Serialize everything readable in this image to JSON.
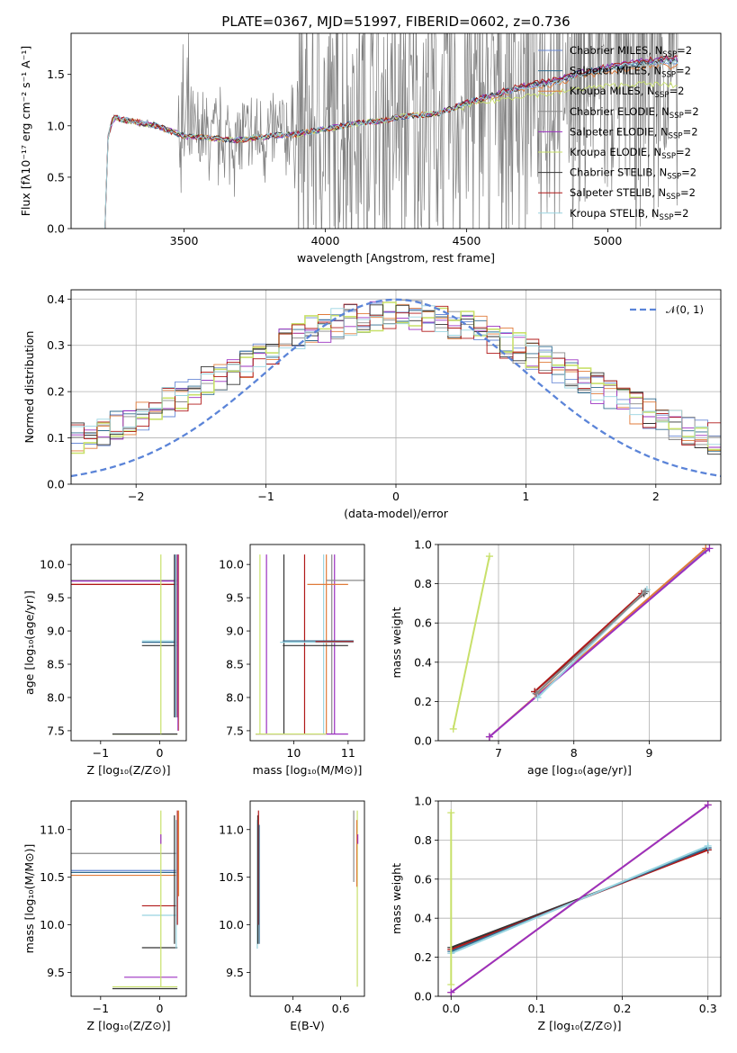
{
  "figure": {
    "title": "PLATE=0367, MJD=51997, FIBERID=0602, z=0.736"
  },
  "models": [
    {
      "name": "Chabrier MILES",
      "color": "#6a8ad6"
    },
    {
      "name": "Salpeter MILES",
      "color": "#2f6b8f"
    },
    {
      "name": "Kroupa MILES",
      "color": "#e07b3a"
    },
    {
      "name": "Chabrier ELODIE",
      "color": "#8a8a8a"
    },
    {
      "name": "Salpeter ELODIE",
      "color": "#9b30c0"
    },
    {
      "name": "Kroupa ELODIE",
      "color": "#c8e06a"
    },
    {
      "name": "Chabrier STELIB",
      "color": "#333333"
    },
    {
      "name": "Salpeter STELIB",
      "color": "#b01818"
    },
    {
      "name": "Kroupa STELIB",
      "color": "#99d4e0"
    }
  ],
  "legend_suffix": "N",
  "legend_sub": "SSP",
  "legend_tail": "=2",
  "chart_data": [
    {
      "id": "spectrum",
      "type": "line",
      "xlabel": "wavelength [Angstrom, rest frame]",
      "ylabel": "Flux [fλ10⁻¹⁷ erg cm⁻² s⁻¹ A⁻¹]",
      "xlim": [
        3100,
        5400
      ],
      "ylim": [
        0,
        1.9
      ],
      "xticks": [
        "3500",
        "4000",
        "4500",
        "5000"
      ],
      "xtick_values": [
        3500,
        4000,
        4500,
        5000
      ],
      "yticks": [
        "0.0",
        "0.5",
        "1.0",
        "1.5"
      ],
      "ytick_values": [
        0.0,
        0.5,
        1.0,
        1.5
      ],
      "legend": "top-right",
      "model_continuum": {
        "x": [
          3220,
          3230,
          3250,
          3300,
          3350,
          3400,
          3500,
          3600,
          3700,
          3800,
          3900,
          4000,
          4100,
          4200,
          4300,
          4400,
          4500,
          4600,
          4700,
          4800,
          4900,
          5000,
          5100,
          5200
        ],
        "y": [
          0.0,
          0.88,
          1.08,
          1.05,
          1.03,
          1.0,
          0.9,
          0.88,
          0.86,
          0.9,
          0.92,
          0.97,
          1.02,
          1.05,
          1.1,
          1.12,
          1.22,
          1.3,
          1.38,
          1.42,
          1.5,
          1.55,
          1.6,
          1.62
        ]
      }
    },
    {
      "id": "residuals",
      "type": "line",
      "xlabel": "(data-model)/error",
      "ylabel": "Normed distribution",
      "xlim": [
        -2.5,
        2.5
      ],
      "ylim": [
        0,
        0.42
      ],
      "xticks": [
        "−2",
        "−1",
        "0",
        "1",
        "2"
      ],
      "xtick_values": [
        -2,
        -1,
        0,
        1,
        2
      ],
      "yticks": [
        "0.0",
        "0.1",
        "0.2",
        "0.3",
        "0.4"
      ],
      "ytick_values": [
        0.0,
        0.1,
        0.2,
        0.3,
        0.4
      ],
      "grid": true,
      "legend": "top-right",
      "gauss_label": "𝒩(0, 1)",
      "gauss_color": "#5b84d8"
    },
    {
      "id": "age-vs-Z",
      "type": "scatter",
      "xlabel": "Z [log₁₀(Z/Z⊙)]",
      "ylabel": "age  [log₁₀(age/yr)]",
      "xlim": [
        -1.5,
        0.45
      ],
      "ylim": [
        7.35,
        10.3
      ],
      "xticks": [
        "−1",
        "0"
      ],
      "xtick_values": [
        -1,
        0
      ],
      "yticks": [
        "7.5",
        "8.0",
        "8.5",
        "9.0",
        "9.5",
        "10.0"
      ],
      "ytick_values": [
        7.5,
        8.0,
        8.5,
        9.0,
        9.5,
        10.0
      ]
    },
    {
      "id": "age-vs-mass",
      "type": "scatter",
      "xlabel": "mass [log₁₀(M/M⊙)]",
      "xlim": [
        9.2,
        11.3
      ],
      "ylim": [
        7.35,
        10.3
      ],
      "xticks": [
        "10",
        "11"
      ],
      "xtick_values": [
        10,
        11
      ],
      "yticks": [
        "7.5",
        "8.0",
        "8.5",
        "9.0",
        "9.5",
        "10.0"
      ],
      "ytick_values": [
        7.5,
        8.0,
        8.5,
        9.0,
        9.5,
        10.0
      ]
    },
    {
      "id": "weight-vs-age",
      "type": "line",
      "xlabel": "age  [log₁₀(age/yr)]",
      "ylabel": "mass weight",
      "xlim": [
        6.2,
        9.95
      ],
      "ylim": [
        0,
        1.0
      ],
      "xticks": [
        "7",
        "8",
        "9"
      ],
      "xtick_values": [
        7,
        8,
        9
      ],
      "yticks": [
        "0.0",
        "0.2",
        "0.4",
        "0.6",
        "0.8",
        "1.0"
      ],
      "ytick_values": [
        0.0,
        0.2,
        0.4,
        0.6,
        0.8,
        1.0
      ],
      "grid": true,
      "series": [
        {
          "model": 0,
          "x": [
            6.88,
            9.75
          ],
          "y": [
            0.02,
            0.97
          ]
        },
        {
          "model": 1,
          "x": [
            7.5,
            8.95
          ],
          "y": [
            0.24,
            0.76
          ]
        },
        {
          "model": 2,
          "x": [
            6.88,
            9.75
          ],
          "y": [
            0.02,
            0.98
          ]
        },
        {
          "model": 4,
          "x": [
            6.88,
            9.8
          ],
          "y": [
            0.02,
            0.98
          ]
        },
        {
          "model": 5,
          "x": [
            6.4,
            6.88
          ],
          "y": [
            0.06,
            0.94
          ]
        },
        {
          "model": 6,
          "x": [
            7.48,
            8.93
          ],
          "y": [
            0.25,
            0.75
          ]
        },
        {
          "model": 7,
          "x": [
            7.48,
            8.9
          ],
          "y": [
            0.25,
            0.75
          ]
        },
        {
          "model": 8,
          "x": [
            7.52,
            8.97
          ],
          "y": [
            0.22,
            0.77
          ]
        },
        {
          "model": 3,
          "x": [
            7.5,
            8.95
          ],
          "y": [
            0.24,
            0.76
          ]
        }
      ]
    },
    {
      "id": "mass-vs-Z",
      "type": "scatter",
      "xlabel": "Z [log₁₀(Z/Z⊙)]",
      "ylabel": "mass [log₁₀(M/M⊙)]",
      "xlim": [
        -1.5,
        0.45
      ],
      "ylim": [
        9.25,
        11.3
      ],
      "xticks": [
        "−1",
        "0"
      ],
      "xtick_values": [
        -1,
        0
      ],
      "yticks": [
        "9.5",
        "10.0",
        "10.5",
        "11.0"
      ],
      "ytick_values": [
        9.5,
        10.0,
        10.5,
        11.0
      ]
    },
    {
      "id": "mass-vs-EBV",
      "type": "scatter",
      "xlabel": "E(B-V)",
      "xlim": [
        0.22,
        0.7
      ],
      "ylim": [
        9.25,
        11.3
      ],
      "xticks": [
        "0.4",
        "0.6"
      ],
      "xtick_values": [
        0.4,
        0.6
      ],
      "yticks": [
        "9.5",
        "10.0",
        "10.5",
        "11.0"
      ],
      "ytick_values": [
        9.5,
        10.0,
        10.5,
        11.0
      ]
    },
    {
      "id": "weight-vs-Z",
      "type": "line",
      "xlabel": "Z [log₁₀(Z/Z⊙)]",
      "ylabel": "mass weight",
      "xlim": [
        -0.015,
        0.315
      ],
      "ylim": [
        0,
        1.0
      ],
      "xticks": [
        "0.0",
        "0.1",
        "0.2",
        "0.3"
      ],
      "xtick_values": [
        0.0,
        0.1,
        0.2,
        0.3
      ],
      "yticks": [
        "0.0",
        "0.2",
        "0.4",
        "0.6",
        "0.8",
        "1.0"
      ],
      "ytick_values": [
        0.0,
        0.2,
        0.4,
        0.6,
        0.8,
        1.0
      ],
      "grid": true,
      "series": [
        {
          "model": 6,
          "x": [
            0.0,
            0.3
          ],
          "y": [
            0.25,
            0.75
          ]
        },
        {
          "model": 7,
          "x": [
            0.0,
            0.3
          ],
          "y": [
            0.24,
            0.75
          ]
        },
        {
          "model": 1,
          "x": [
            0.0,
            0.3
          ],
          "y": [
            0.23,
            0.76
          ]
        },
        {
          "model": 8,
          "x": [
            0.0,
            0.3
          ],
          "y": [
            0.22,
            0.77
          ]
        },
        {
          "model": 2,
          "x": [
            0.0,
            0.3
          ],
          "y": [
            0.02,
            0.98
          ]
        },
        {
          "model": 4,
          "x": [
            0.0,
            0.3
          ],
          "y": [
            0.02,
            0.98
          ]
        },
        {
          "model": 5,
          "x": [
            0.0,
            0.0
          ],
          "y": [
            0.06,
            0.94
          ]
        }
      ]
    }
  ]
}
